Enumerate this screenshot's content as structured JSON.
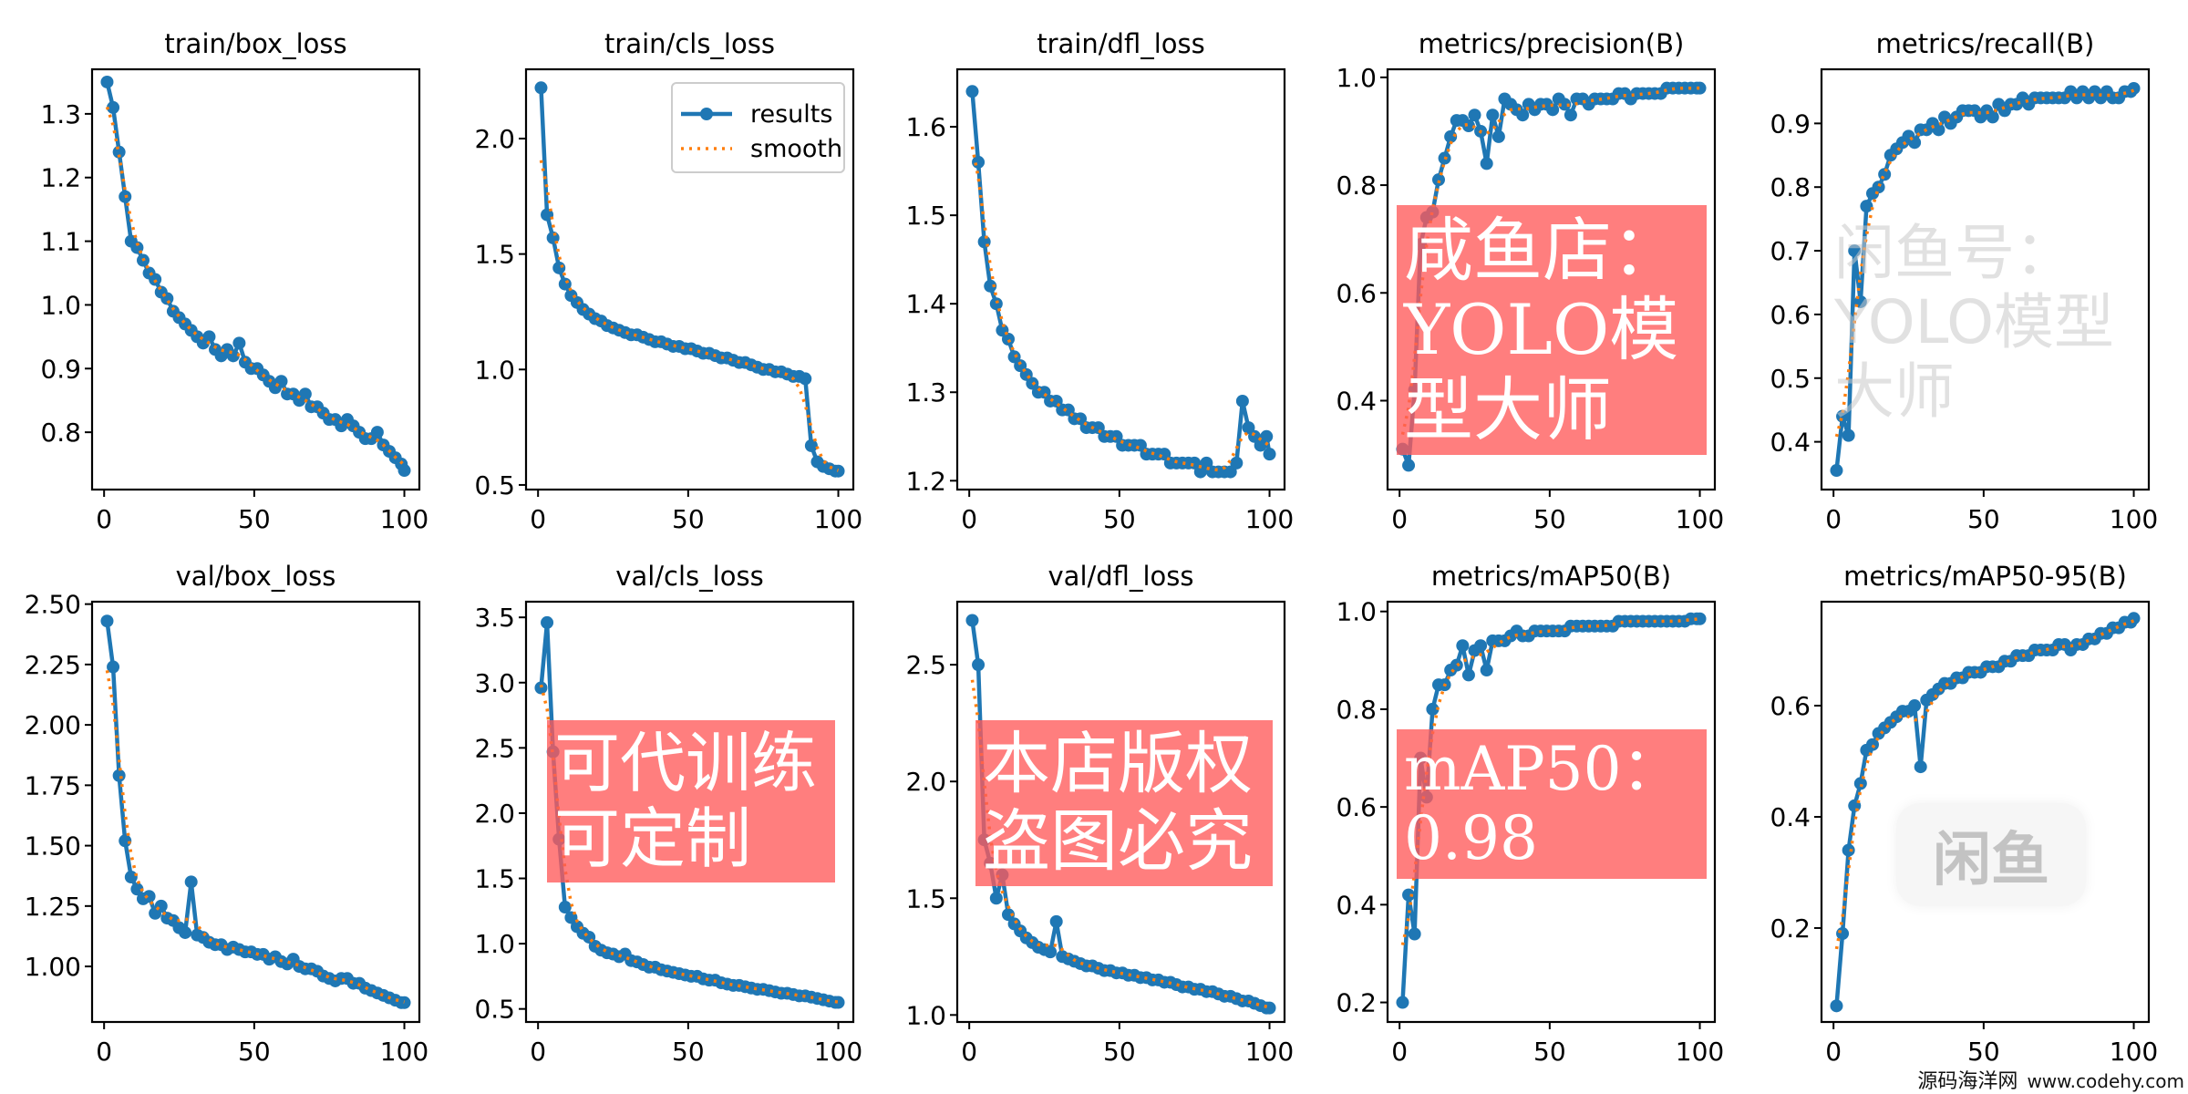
{
  "chart_data": {
    "type": "line",
    "legend": {
      "entries": [
        "results",
        "smooth"
      ],
      "placement": "top-right",
      "shown_in": "train/cls_loss"
    },
    "colors": {
      "results": "#1f77b4",
      "smooth": "#ff7f0e"
    },
    "x": [
      1,
      3,
      5,
      7,
      9,
      11,
      13,
      15,
      17,
      19,
      21,
      23,
      25,
      27,
      29,
      31,
      33,
      35,
      37,
      39,
      41,
      43,
      45,
      47,
      49,
      51,
      53,
      55,
      57,
      59,
      61,
      63,
      65,
      67,
      69,
      71,
      73,
      75,
      77,
      79,
      81,
      83,
      85,
      87,
      89,
      91,
      93,
      95,
      97,
      99,
      100
    ],
    "xlim": [
      -4,
      105
    ],
    "xticks": [
      0,
      50,
      100
    ],
    "panels": [
      {
        "title": "train/box_loss",
        "ylim": [
          0.71,
          1.37
        ],
        "yticks": [
          0.8,
          0.9,
          1.0,
          1.1,
          1.2,
          1.3
        ],
        "ytick_labels": [
          "0.8",
          "0.9",
          "1.0",
          "1.1",
          "1.2",
          "1.3"
        ],
        "values": [
          1.35,
          1.31,
          1.24,
          1.17,
          1.1,
          1.09,
          1.07,
          1.05,
          1.04,
          1.02,
          1.01,
          0.99,
          0.98,
          0.97,
          0.96,
          0.95,
          0.94,
          0.95,
          0.93,
          0.92,
          0.93,
          0.92,
          0.94,
          0.91,
          0.9,
          0.9,
          0.89,
          0.88,
          0.87,
          0.88,
          0.86,
          0.86,
          0.85,
          0.86,
          0.84,
          0.84,
          0.83,
          0.82,
          0.82,
          0.81,
          0.82,
          0.81,
          0.8,
          0.79,
          0.79,
          0.8,
          0.78,
          0.77,
          0.76,
          0.75,
          0.74
        ]
      },
      {
        "title": "train/cls_loss",
        "ylim": [
          0.48,
          2.3
        ],
        "yticks": [
          0.5,
          1.0,
          1.5,
          2.0
        ],
        "ytick_labels": [
          "0.5",
          "1.0",
          "1.5",
          "2.0"
        ],
        "values": [
          2.22,
          1.67,
          1.57,
          1.44,
          1.37,
          1.32,
          1.29,
          1.26,
          1.24,
          1.22,
          1.21,
          1.19,
          1.18,
          1.17,
          1.16,
          1.15,
          1.15,
          1.14,
          1.13,
          1.12,
          1.12,
          1.11,
          1.1,
          1.1,
          1.09,
          1.09,
          1.08,
          1.07,
          1.07,
          1.06,
          1.05,
          1.05,
          1.04,
          1.03,
          1.03,
          1.02,
          1.01,
          1.0,
          1.0,
          0.99,
          0.99,
          0.98,
          0.97,
          0.97,
          0.96,
          0.67,
          0.6,
          0.58,
          0.57,
          0.56,
          0.56
        ]
      },
      {
        "title": "train/dfl_loss",
        "ylim": [
          1.19,
          1.665
        ],
        "yticks": [
          1.2,
          1.3,
          1.4,
          1.5,
          1.6
        ],
        "ytick_labels": [
          "1.2",
          "1.3",
          "1.4",
          "1.5",
          "1.6"
        ],
        "values": [
          1.64,
          1.56,
          1.47,
          1.42,
          1.4,
          1.37,
          1.36,
          1.34,
          1.33,
          1.32,
          1.31,
          1.3,
          1.3,
          1.29,
          1.29,
          1.28,
          1.28,
          1.27,
          1.27,
          1.26,
          1.26,
          1.26,
          1.25,
          1.25,
          1.25,
          1.24,
          1.24,
          1.24,
          1.24,
          1.23,
          1.23,
          1.23,
          1.23,
          1.22,
          1.22,
          1.22,
          1.22,
          1.22,
          1.21,
          1.22,
          1.21,
          1.21,
          1.21,
          1.21,
          1.22,
          1.29,
          1.26,
          1.25,
          1.24,
          1.25,
          1.23
        ]
      },
      {
        "title": "metrics/precision(B)",
        "ylim": [
          0.235,
          1.015
        ],
        "yticks": [
          0.4,
          0.6,
          0.8,
          1.0
        ],
        "ytick_labels": [
          "0.4",
          "0.6",
          "0.8",
          "1.0"
        ],
        "values": [
          0.31,
          0.28,
          0.42,
          0.69,
          0.74,
          0.75,
          0.81,
          0.85,
          0.89,
          0.92,
          0.92,
          0.91,
          0.93,
          0.9,
          0.84,
          0.93,
          0.89,
          0.96,
          0.95,
          0.94,
          0.93,
          0.95,
          0.94,
          0.95,
          0.95,
          0.94,
          0.96,
          0.95,
          0.93,
          0.96,
          0.96,
          0.95,
          0.96,
          0.96,
          0.96,
          0.96,
          0.97,
          0.97,
          0.96,
          0.97,
          0.97,
          0.97,
          0.97,
          0.97,
          0.98,
          0.98,
          0.98,
          0.98,
          0.98,
          0.98,
          0.98
        ]
      },
      {
        "title": "metrics/recall(B)",
        "ylim": [
          0.325,
          0.985
        ],
        "yticks": [
          0.4,
          0.5,
          0.6,
          0.7,
          0.8,
          0.9
        ],
        "ytick_labels": [
          "0.4",
          "0.5",
          "0.6",
          "0.7",
          "0.8",
          "0.9"
        ],
        "values": [
          0.355,
          0.44,
          0.41,
          0.7,
          0.62,
          0.77,
          0.79,
          0.8,
          0.82,
          0.85,
          0.86,
          0.87,
          0.88,
          0.87,
          0.89,
          0.89,
          0.9,
          0.89,
          0.91,
          0.9,
          0.91,
          0.92,
          0.92,
          0.92,
          0.91,
          0.92,
          0.91,
          0.93,
          0.92,
          0.93,
          0.93,
          0.94,
          0.93,
          0.94,
          0.94,
          0.94,
          0.94,
          0.94,
          0.94,
          0.95,
          0.94,
          0.95,
          0.94,
          0.95,
          0.94,
          0.95,
          0.94,
          0.94,
          0.95,
          0.95,
          0.955
        ]
      },
      {
        "title": "val/box_loss",
        "ylim": [
          0.77,
          2.51
        ],
        "yticks": [
          1.0,
          1.25,
          1.5,
          1.75,
          2.0,
          2.25,
          2.5
        ],
        "ytick_labels": [
          "1.00",
          "1.25",
          "1.50",
          "1.75",
          "2.00",
          "2.25",
          "2.50"
        ],
        "values": [
          2.43,
          2.24,
          1.79,
          1.52,
          1.37,
          1.32,
          1.28,
          1.29,
          1.22,
          1.25,
          1.2,
          1.19,
          1.16,
          1.14,
          1.35,
          1.13,
          1.12,
          1.1,
          1.09,
          1.09,
          1.07,
          1.08,
          1.07,
          1.06,
          1.06,
          1.05,
          1.05,
          1.03,
          1.04,
          1.02,
          1.01,
          1.03,
          1.0,
          0.99,
          0.99,
          0.98,
          0.96,
          0.95,
          0.94,
          0.95,
          0.95,
          0.93,
          0.93,
          0.91,
          0.9,
          0.89,
          0.88,
          0.87,
          0.86,
          0.85,
          0.85
        ]
      },
      {
        "title": "val/cls_loss",
        "ylim": [
          0.4,
          3.62
        ],
        "yticks": [
          0.5,
          1.0,
          1.5,
          2.0,
          2.5,
          3.0,
          3.5
        ],
        "ytick_labels": [
          "0.5",
          "1.0",
          "1.5",
          "2.0",
          "2.5",
          "3.0",
          "3.5"
        ],
        "values": [
          2.96,
          3.46,
          2.47,
          1.8,
          1.28,
          1.2,
          1.13,
          1.08,
          1.05,
          0.98,
          0.95,
          0.93,
          0.92,
          0.9,
          0.92,
          0.87,
          0.86,
          0.84,
          0.82,
          0.82,
          0.8,
          0.79,
          0.78,
          0.77,
          0.76,
          0.75,
          0.75,
          0.73,
          0.72,
          0.72,
          0.7,
          0.69,
          0.68,
          0.68,
          0.67,
          0.66,
          0.65,
          0.65,
          0.64,
          0.63,
          0.62,
          0.62,
          0.61,
          0.6,
          0.6,
          0.59,
          0.58,
          0.57,
          0.56,
          0.55,
          0.55
        ]
      },
      {
        "title": "val/dfl_loss",
        "ylim": [
          0.97,
          2.77
        ],
        "yticks": [
          1.0,
          1.5,
          2.0,
          2.5
        ],
        "ytick_labels": [
          "1.0",
          "1.5",
          "2.0",
          "2.5"
        ],
        "values": [
          2.69,
          2.5,
          1.75,
          1.65,
          1.5,
          1.6,
          1.43,
          1.39,
          1.36,
          1.33,
          1.31,
          1.29,
          1.28,
          1.27,
          1.4,
          1.25,
          1.24,
          1.23,
          1.22,
          1.21,
          1.21,
          1.2,
          1.19,
          1.19,
          1.18,
          1.18,
          1.17,
          1.17,
          1.16,
          1.16,
          1.15,
          1.15,
          1.14,
          1.14,
          1.13,
          1.12,
          1.12,
          1.11,
          1.11,
          1.1,
          1.1,
          1.09,
          1.08,
          1.08,
          1.07,
          1.06,
          1.06,
          1.05,
          1.04,
          1.03,
          1.03
        ]
      },
      {
        "title": "metrics/mAP50(B)",
        "ylim": [
          0.16,
          1.02
        ],
        "yticks": [
          0.2,
          0.4,
          0.6,
          0.8,
          1.0
        ],
        "ytick_labels": [
          "0.2",
          "0.4",
          "0.6",
          "0.8",
          "1.0"
        ],
        "values": [
          0.2,
          0.42,
          0.34,
          0.7,
          0.62,
          0.8,
          0.85,
          0.85,
          0.88,
          0.89,
          0.93,
          0.87,
          0.92,
          0.93,
          0.88,
          0.94,
          0.94,
          0.94,
          0.95,
          0.96,
          0.95,
          0.95,
          0.96,
          0.96,
          0.96,
          0.96,
          0.96,
          0.96,
          0.97,
          0.97,
          0.97,
          0.97,
          0.97,
          0.97,
          0.97,
          0.97,
          0.98,
          0.98,
          0.98,
          0.98,
          0.98,
          0.98,
          0.98,
          0.98,
          0.98,
          0.98,
          0.98,
          0.98,
          0.985,
          0.985,
          0.985
        ]
      },
      {
        "title": "metrics/mAP50-95(B)",
        "ylim": [
          0.031,
          0.787
        ],
        "yticks": [
          0.2,
          0.4,
          0.6
        ],
        "ytick_labels": [
          "0.2",
          "0.4",
          "0.6"
        ],
        "values": [
          0.06,
          0.19,
          0.34,
          0.42,
          0.46,
          0.52,
          0.53,
          0.55,
          0.56,
          0.57,
          0.58,
          0.59,
          0.59,
          0.6,
          0.49,
          0.61,
          0.62,
          0.63,
          0.64,
          0.64,
          0.65,
          0.65,
          0.66,
          0.66,
          0.66,
          0.67,
          0.67,
          0.67,
          0.68,
          0.68,
          0.69,
          0.69,
          0.69,
          0.7,
          0.7,
          0.7,
          0.7,
          0.71,
          0.71,
          0.7,
          0.71,
          0.71,
          0.72,
          0.72,
          0.73,
          0.73,
          0.74,
          0.74,
          0.75,
          0.75,
          0.757
        ]
      }
    ]
  },
  "watermarks": {
    "shop": "咸鱼店：YOLO模型大师",
    "custom": "可代训练可定制",
    "map": "mAP50：0.98",
    "copyright": "本店版权盗图必究",
    "account": "闲鱼号：YOLO模型大师",
    "logo": "闲鱼",
    "site_name": "源码海洋网",
    "site_url": "www.codehy.com"
  }
}
